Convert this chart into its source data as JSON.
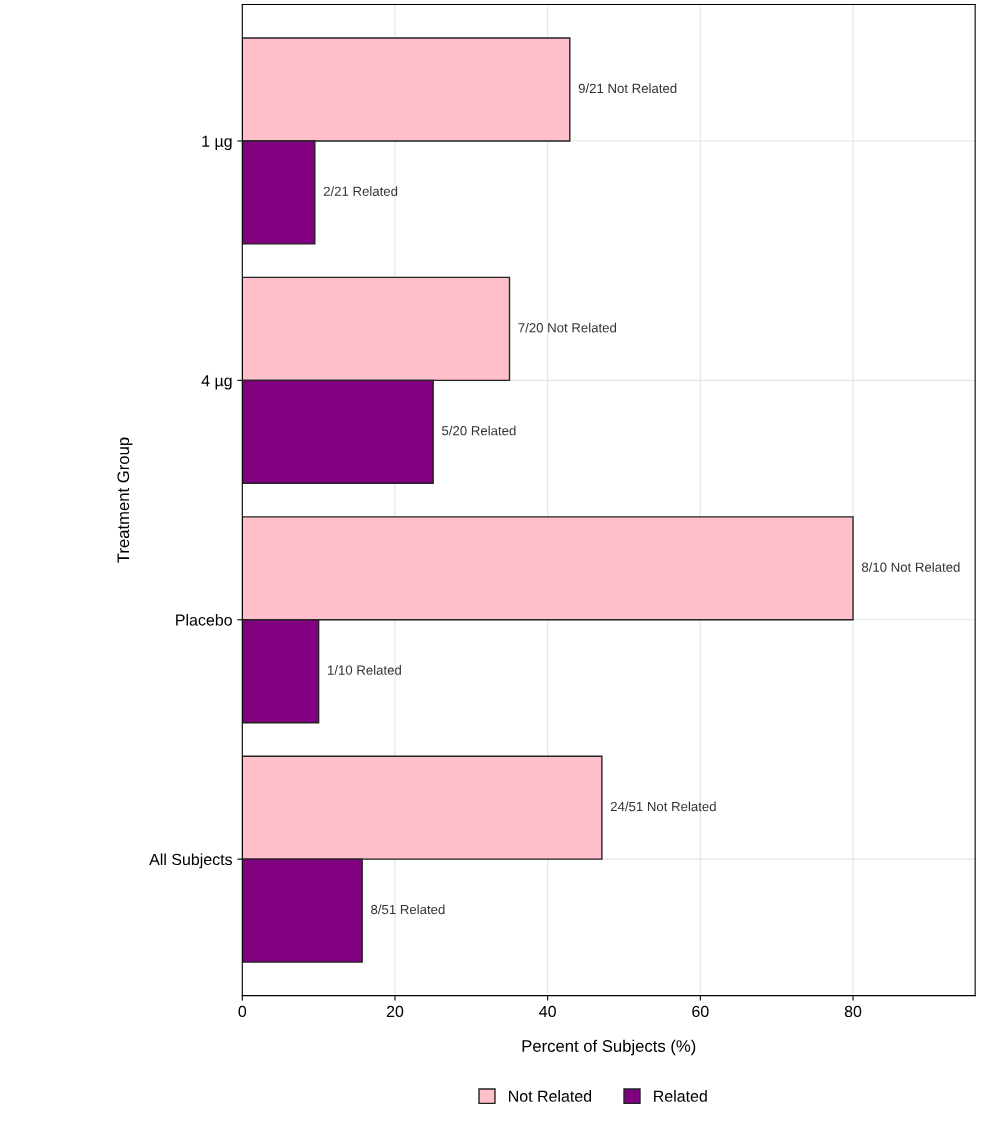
{
  "chart_data": {
    "type": "bar",
    "orientation": "horizontal",
    "xlabel": "Percent of Subjects (%)",
    "ylabel": "Treatment Group",
    "categories": [
      "1 µg",
      "4 µg",
      "Placebo",
      "All Subjects"
    ],
    "series": [
      {
        "name": "Not Related",
        "color": "#ffc0cb",
        "values": [
          42.9,
          35,
          80,
          47.1
        ],
        "value_labels": [
          "9/21 Not Related",
          "7/20 Not Related",
          "8/10 Not Related",
          "24/51 Not Related"
        ]
      },
      {
        "name": "Related",
        "color": "#800080",
        "values": [
          9.5,
          25,
          10,
          15.7
        ],
        "value_labels": [
          "2/21 Related",
          "5/20 Related",
          "1/10 Related",
          "8/51 Related"
        ]
      }
    ],
    "xlim": [
      0,
      96
    ],
    "xticks": [
      0,
      20,
      40,
      60,
      80
    ],
    "grid": true,
    "legend": "bottom"
  }
}
